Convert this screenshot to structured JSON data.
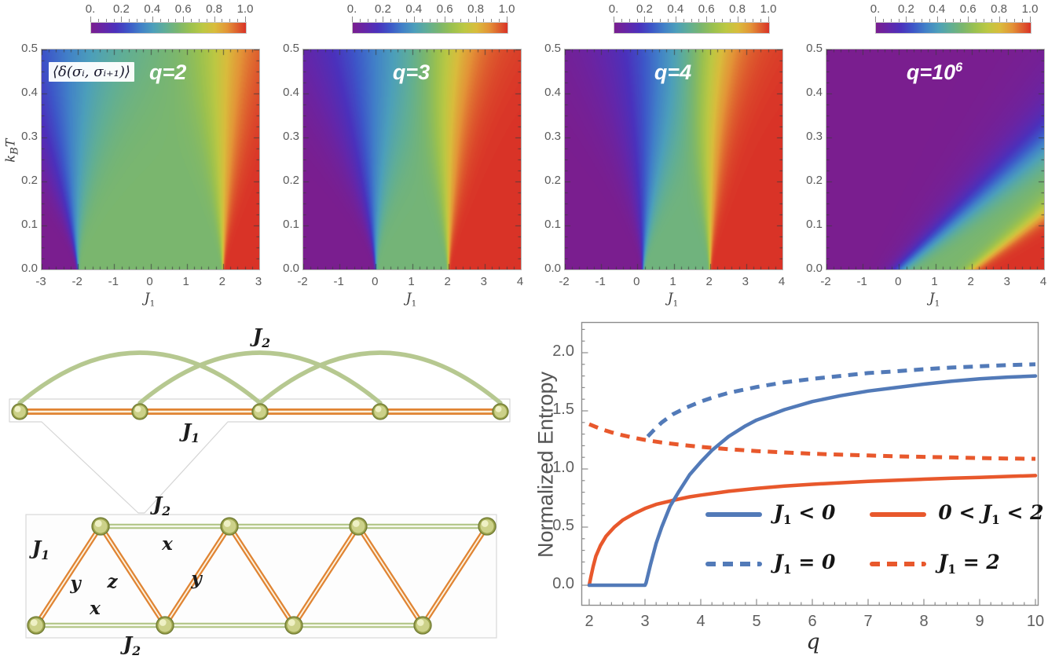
{
  "colormap_stops": [
    [
      0,
      "#7A1E8F"
    ],
    [
      0.08,
      "#6526A8"
    ],
    [
      0.16,
      "#4B31BC"
    ],
    [
      0.24,
      "#3D56C8"
    ],
    [
      0.32,
      "#4180C8"
    ],
    [
      0.4,
      "#4C9FBB"
    ],
    [
      0.48,
      "#60AE96"
    ],
    [
      0.56,
      "#7AB66E"
    ],
    [
      0.64,
      "#9BC14F"
    ],
    [
      0.72,
      "#BCC843"
    ],
    [
      0.8,
      "#D9BC3C"
    ],
    [
      0.88,
      "#E39437"
    ],
    [
      1,
      "#D93327"
    ]
  ],
  "chart_data": [
    {
      "type": "heatmap",
      "label_base": "q=2",
      "label_sup": "",
      "overlay_label": "⟨δ(σᵢ, σᵢ₊₁)⟩",
      "xlabel": {
        "base": "J",
        "sub": "1"
      },
      "ylabel": {
        "base": "k",
        "sub": "B",
        "tail": "T"
      },
      "xlim": [
        -3,
        3
      ],
      "ylim": [
        0,
        0.5
      ],
      "zlim": [
        0,
        1
      ],
      "x_ticks": [
        "-3",
        "-2",
        "-1",
        "0",
        "1",
        "2",
        "3"
      ],
      "y_ticks": [
        "0.0",
        "0.1",
        "0.2",
        "0.3",
        "0.4",
        "0.5"
      ],
      "colorbar_ticks": [
        "0.",
        "0.2",
        "0.4",
        "0.6",
        "0.8",
        "1.0"
      ],
      "phase_boundaries_T0": [
        -2,
        2
      ],
      "model": {
        "kind": "two_sigmoid",
        "cL": -2,
        "dL": -1.2,
        "aL": 3.0,
        "gL": 1.5,
        "cR": 2,
        "dR": 0,
        "aR": 1.15,
        "gR": 1.25,
        "vm": 0.56
      }
    },
    {
      "type": "heatmap",
      "label_base": "q=3",
      "label_sup": "",
      "xlabel": {
        "base": "J",
        "sub": "1"
      },
      "xlim": [
        -2,
        4
      ],
      "ylim": [
        0,
        0.5
      ],
      "zlim": [
        0,
        1
      ],
      "x_ticks": [
        "-2",
        "-1",
        "0",
        "1",
        "2",
        "3",
        "4"
      ],
      "y_ticks": [
        "0.0",
        "0.1",
        "0.2",
        "0.3",
        "0.4",
        "0.5"
      ],
      "colorbar_ticks": [
        "0.",
        "0.2",
        "0.4",
        "0.6",
        "0.8",
        "1.0"
      ],
      "phase_boundaries_T0": [
        0,
        2
      ],
      "model": {
        "kind": "two_sigmoid",
        "cL": 0,
        "dL": -0.7,
        "aL": 2.6,
        "gL": 1.45,
        "cR": 2,
        "dR": 0,
        "aR": 1.15,
        "gR": 1.25,
        "vm": 0.54
      }
    },
    {
      "type": "heatmap",
      "label_base": "q=4",
      "label_sup": "",
      "xlabel": {
        "base": "J",
        "sub": "1"
      },
      "xlim": [
        -2,
        4
      ],
      "ylim": [
        0,
        0.5
      ],
      "zlim": [
        0,
        1
      ],
      "x_ticks": [
        "-2",
        "-1",
        "0",
        "1",
        "2",
        "3",
        "4"
      ],
      "y_ticks": [
        "0.0",
        "0.1",
        "0.2",
        "0.3",
        "0.4",
        "0.5"
      ],
      "colorbar_ticks": [
        "0.",
        "0.2",
        "0.4",
        "0.6",
        "0.8",
        "1.0"
      ],
      "phase_boundaries_T0": [
        0,
        2
      ],
      "model": {
        "kind": "two_sigmoid",
        "cL": 0.15,
        "dL": 0.45,
        "aL": 2.1,
        "gL": 1.35,
        "cR": 2,
        "dR": 0,
        "aR": 1.05,
        "gR": 1.25,
        "vm": 0.53
      }
    },
    {
      "type": "heatmap",
      "label_base": "q=10",
      "label_sup": "6",
      "xlabel": {
        "base": "J",
        "sub": "1"
      },
      "xlim": [
        -2,
        4
      ],
      "ylim": [
        0,
        0.5
      ],
      "zlim": [
        0,
        1
      ],
      "x_ticks": [
        "-2",
        "-1",
        "0",
        "1",
        "2",
        "3",
        "4"
      ],
      "y_ticks": [
        "0.0",
        "0.1",
        "0.2",
        "0.3",
        "0.4",
        "0.5"
      ],
      "colorbar_ticks": [
        "0.",
        "0.2",
        "0.4",
        "0.6",
        "0.8",
        "1.0"
      ],
      "phase_boundaries_T0": [
        0,
        2
      ],
      "model": {
        "kind": "wedge",
        "m1": 0.075,
        "m2": 0.066,
        "vm": 0.56
      }
    },
    {
      "type": "line",
      "xlabel": "q",
      "ylabel": "Normalized Entropy",
      "xlim": [
        2,
        10
      ],
      "ylim": [
        0,
        2
      ],
      "x_ticks": [
        2,
        3,
        4,
        5,
        6,
        7,
        8,
        9,
        10
      ],
      "y_ticks": [
        "0.0",
        "0.5",
        "1.0",
        "1.5",
        "2.0"
      ],
      "legend_position": "inside lower right",
      "series": [
        {
          "name": "J1 < 0",
          "style": "solid",
          "color": "#527AB8",
          "label": {
            "pre": "",
            "variable": "J",
            "sub": "1",
            "rest": " < 0"
          },
          "points": [
            [
              2,
              0
            ],
            [
              2.5,
              0
            ],
            [
              2.9,
              0
            ],
            [
              3,
              0
            ],
            [
              3.02,
              0.02
            ],
            [
              3.1,
              0.18
            ],
            [
              3.2,
              0.36
            ],
            [
              3.3,
              0.5
            ],
            [
              3.45,
              0.68
            ],
            [
              3.6,
              0.8
            ],
            [
              3.8,
              0.95
            ],
            [
              4,
              1.06
            ],
            [
              4.2,
              1.16
            ],
            [
              4.5,
              1.28
            ],
            [
              4.8,
              1.37
            ],
            [
              5,
              1.42
            ],
            [
              5.5,
              1.51
            ],
            [
              6,
              1.58
            ],
            [
              6.5,
              1.63
            ],
            [
              7,
              1.67
            ],
            [
              7.5,
              1.7
            ],
            [
              8,
              1.73
            ],
            [
              8.5,
              1.755
            ],
            [
              9,
              1.775
            ],
            [
              9.5,
              1.79
            ],
            [
              10,
              1.8
            ]
          ]
        },
        {
          "name": "0 < J1 < 2",
          "style": "solid",
          "color": "#E8582C",
          "label": {
            "pre": "0 < ",
            "variable": "J",
            "sub": "1",
            "rest": " < 2"
          },
          "points": [
            [
              2,
              0
            ],
            [
              2.03,
              0.07
            ],
            [
              2.07,
              0.16
            ],
            [
              2.12,
              0.25
            ],
            [
              2.2,
              0.34
            ],
            [
              2.3,
              0.42
            ],
            [
              2.45,
              0.5
            ],
            [
              2.6,
              0.56
            ],
            [
              2.8,
              0.615
            ],
            [
              3,
              0.66
            ],
            [
              3.2,
              0.695
            ],
            [
              3.5,
              0.73
            ],
            [
              3.8,
              0.76
            ],
            [
              4,
              0.775
            ],
            [
              4.5,
              0.808
            ],
            [
              5,
              0.833
            ],
            [
              5.5,
              0.853
            ],
            [
              6,
              0.868
            ],
            [
              6.5,
              0.881
            ],
            [
              7,
              0.893
            ],
            [
              7.5,
              0.903
            ],
            [
              8,
              0.912
            ],
            [
              8.5,
              0.92
            ],
            [
              9,
              0.928
            ],
            [
              9.5,
              0.936
            ],
            [
              10,
              0.943
            ]
          ]
        },
        {
          "name": "J1 = 0",
          "style": "dashed",
          "color": "#527AB8",
          "label": {
            "pre": "",
            "variable": "J",
            "sub": "1",
            "rest": " = 0"
          },
          "points": [
            [
              3.05,
              1.28
            ],
            [
              3.15,
              1.33
            ],
            [
              3.3,
              1.4
            ],
            [
              3.5,
              1.47
            ],
            [
              3.75,
              1.53
            ],
            [
              4,
              1.58
            ],
            [
              4.25,
              1.62
            ],
            [
              4.5,
              1.655
            ],
            [
              5,
              1.705
            ],
            [
              5.5,
              1.745
            ],
            [
              6,
              1.775
            ],
            [
              6.5,
              1.8
            ],
            [
              7,
              1.825
            ],
            [
              7.5,
              1.84
            ],
            [
              8,
              1.858
            ],
            [
              8.5,
              1.872
            ],
            [
              9,
              1.883
            ],
            [
              9.5,
              1.893
            ],
            [
              10,
              1.9
            ]
          ]
        },
        {
          "name": "J1 = 2",
          "style": "dashed",
          "color": "#E8582C",
          "label": {
            "pre": "",
            "variable": "J",
            "sub": "1",
            "rest": " = 2"
          },
          "points": [
            [
              2,
              1.385
            ],
            [
              2.2,
              1.345
            ],
            [
              2.4,
              1.315
            ],
            [
              2.6,
              1.29
            ],
            [
              2.8,
              1.268
            ],
            [
              3,
              1.25
            ],
            [
              3.3,
              1.228
            ],
            [
              3.6,
              1.21
            ],
            [
              4,
              1.19
            ],
            [
              4.5,
              1.17
            ],
            [
              5,
              1.154
            ],
            [
              5.5,
              1.142
            ],
            [
              6,
              1.131
            ],
            [
              6.5,
              1.123
            ],
            [
              7,
              1.116
            ],
            [
              7.5,
              1.109
            ],
            [
              8,
              1.104
            ],
            [
              8.5,
              1.099
            ],
            [
              9,
              1.094
            ],
            [
              9.5,
              1.09
            ],
            [
              10,
              1.087
            ]
          ]
        }
      ]
    },
    {
      "type": "diagram",
      "description": "J1-J2 chain unfolded into triangular two-leg ladder",
      "chain": {
        "node_count": 5,
        "labels": {
          "J1": {
            "base": "J",
            "sub": "1"
          },
          "J2": {
            "base": "J",
            "sub": "2"
          }
        }
      },
      "ladder": {
        "top_node_count": 4,
        "bottom_node_count": 4,
        "labels": {
          "J2_top": {
            "base": "J",
            "sub": "2"
          },
          "x_top": "x",
          "J1": {
            "base": "J",
            "sub": "1"
          },
          "y_left": "y",
          "z": "z",
          "y_mid": "y",
          "x_bottom": "x",
          "J2_bottom": {
            "base": "J",
            "sub": "2"
          }
        }
      },
      "colors": {
        "node_fill": "#ccd189",
        "node_rim": "#6f7a33",
        "bond_J1_outer": "#E08433",
        "bond_J1_core": "#FCF2DF",
        "bond_J2_outer": "#AFC383",
        "bond_J2_core": "#F5F8EA",
        "arc": "#B6C890",
        "box_border": "#D5D5D5"
      }
    }
  ]
}
